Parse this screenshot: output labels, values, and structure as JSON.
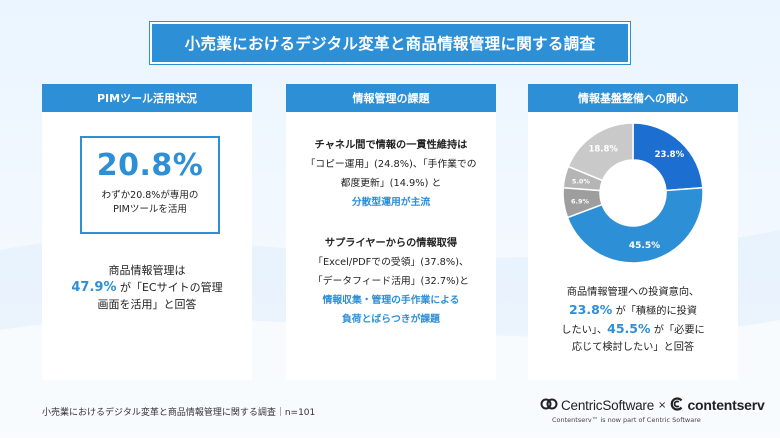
{
  "title": "小売業におけるデジタル変革と商品情報管理に関する調査",
  "card1": {
    "header": "PIMツール活用状況",
    "stat_value": "20.8%",
    "stat_line1": "わずか20.8%が専用の",
    "stat_line2": "PIMツールを活用",
    "body_line1": "商品情報管理は",
    "body_pct": "47.9%",
    "body_line2_rest": "が「ECサイトの管理",
    "body_line3": "画面を活用」と回答"
  },
  "card2": {
    "header": "情報管理の課題",
    "block1": {
      "heading": "チャネル間で情報の一貫性維持は",
      "line1": "「コピー運用」(24.8%)、「手作業での",
      "line2": "都度更新」(14.9%) と",
      "highlight": "分散型運用が主流"
    },
    "block2": {
      "heading": "サプライヤーからの情報取得",
      "line1": "「Excel/PDFでの受領」(37.8%)、",
      "line2": "「データフィード活用」(32.7%)と",
      "highlight1": "情報収集・管理の手作業による",
      "highlight2": "負荷とばらつきが課題"
    }
  },
  "card3": {
    "header": "情報基盤整備への関心",
    "line1": "商品情報管理への投資意向、",
    "pct1": "23.8%",
    "line2_rest": "が「積極的に投資",
    "line3_pre": "したい」、",
    "pct2": "45.5%",
    "line3_rest": "が「必要に",
    "line4": "応じて検討したい」と回答"
  },
  "chart_data": {
    "type": "pie",
    "donut": true,
    "categories": [
      "",
      "",
      "",
      "",
      ""
    ],
    "values": [
      23.8,
      45.5,
      6.9,
      5.0,
      18.8
    ],
    "labels": [
      "23.8%",
      "45.5%",
      "6.9%",
      "5.0%",
      "18.8%"
    ],
    "colors": [
      "#1c6fd1",
      "#2d8fd6",
      "#9e9e9e",
      "#b5b5b5",
      "#c9c9c9"
    ]
  },
  "footer": {
    "survey_note": "小売業におけるデジタル変革と商品情報管理に関する調査｜n=101",
    "logo1": "CentricSoftware",
    "logo_sep": "×",
    "logo2": "contentserv",
    "logo_note": "Contentserv™ is now part of Centric Software"
  }
}
